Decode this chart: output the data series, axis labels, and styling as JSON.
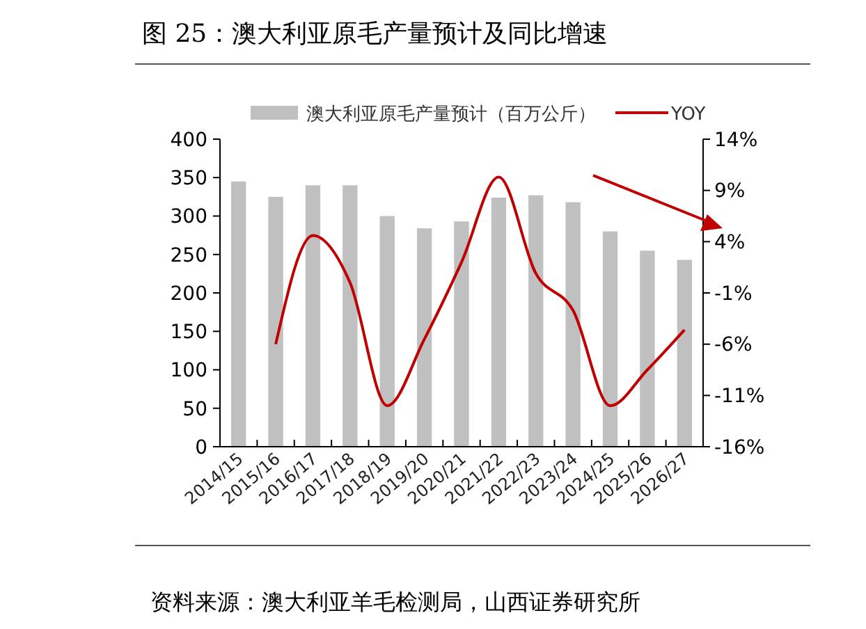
{
  "chart_data": {
    "type": "bar",
    "title": "图 25：澳大利亚原毛产量预计及同比增速",
    "categories": [
      "2014/15",
      "2015/16",
      "2016/17",
      "2017/18",
      "2018/19",
      "2019/20",
      "2020/21",
      "2021/22",
      "2022/23",
      "2023/24",
      "2024/25",
      "2025/26",
      "2026/27"
    ],
    "series": [
      {
        "name": "澳大利亚原毛产量预计（百万公斤）",
        "color": "#c0c0c0",
        "values": [
          345,
          325,
          340,
          340,
          300,
          284,
          293,
          324,
          327,
          318,
          280,
          255,
          243
        ]
      },
      {
        "name": "YOY",
        "type": "line",
        "axis": "y2",
        "color": "#c00000",
        "values": [
          null,
          -6,
          4.6,
          0,
          -12,
          -5.5,
          2,
          10.3,
          0.9,
          -2.7,
          -12,
          -8.5,
          -4.6
        ]
      }
    ],
    "ylim": [
      0,
      400
    ],
    "yticks": [
      0,
      50,
      100,
      150,
      200,
      250,
      300,
      350,
      400
    ],
    "y2lim": [
      -16,
      14
    ],
    "y2ticks": [
      {
        "value": -16,
        "label": "-16%"
      },
      {
        "value": -11,
        "label": "-11%"
      },
      {
        "value": -6,
        "label": "-6%"
      },
      {
        "value": -1,
        "label": "-1%"
      },
      {
        "value": 4,
        "label": "4%"
      },
      {
        "value": 9,
        "label": "9%"
      },
      {
        "value": 14,
        "label": "14%"
      }
    ],
    "legend": "top",
    "grid": false,
    "marker": "none",
    "line_style": "solid",
    "annotations": [
      "资料来源：澳大利亚羊毛检测局，山西证券研究所"
    ]
  }
}
